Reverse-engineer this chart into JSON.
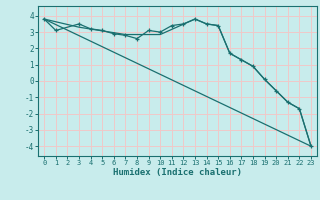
{
  "title": "",
  "xlabel": "Humidex (Indice chaleur)",
  "background_color": "#c8ecec",
  "grid_color": "#f0c8c8",
  "line_color": "#1a7070",
  "xlim": [
    -0.5,
    23.5
  ],
  "ylim": [
    -4.6,
    4.6
  ],
  "yticks": [
    -4,
    -3,
    -2,
    -1,
    0,
    1,
    2,
    3,
    4
  ],
  "xticks": [
    0,
    1,
    2,
    3,
    4,
    5,
    6,
    7,
    8,
    9,
    10,
    11,
    12,
    13,
    14,
    15,
    16,
    17,
    18,
    19,
    20,
    21,
    22,
    23
  ],
  "series1_x": [
    0,
    1,
    3,
    4,
    5,
    6,
    7,
    8,
    9,
    10,
    11,
    12,
    13,
    14,
    15,
    16,
    17,
    18,
    19,
    20,
    21,
    22,
    23
  ],
  "series1_y": [
    3.8,
    3.1,
    3.5,
    3.2,
    3.1,
    2.9,
    2.8,
    2.6,
    3.1,
    3.0,
    3.4,
    3.5,
    3.8,
    3.5,
    3.4,
    1.7,
    1.3,
    0.9,
    0.1,
    -0.6,
    -1.3,
    -1.7,
    -4.0
  ],
  "series2_x": [
    0,
    23
  ],
  "series2_y": [
    3.8,
    -4.0
  ],
  "series3_x": [
    0,
    3,
    7,
    10,
    13,
    14,
    15,
    16,
    17,
    18,
    19,
    20,
    21,
    22,
    23
  ],
  "series3_y": [
    3.8,
    3.3,
    2.85,
    2.85,
    3.8,
    3.5,
    3.4,
    1.7,
    1.3,
    0.9,
    0.1,
    -0.6,
    -1.3,
    -1.7,
    -4.0
  ]
}
